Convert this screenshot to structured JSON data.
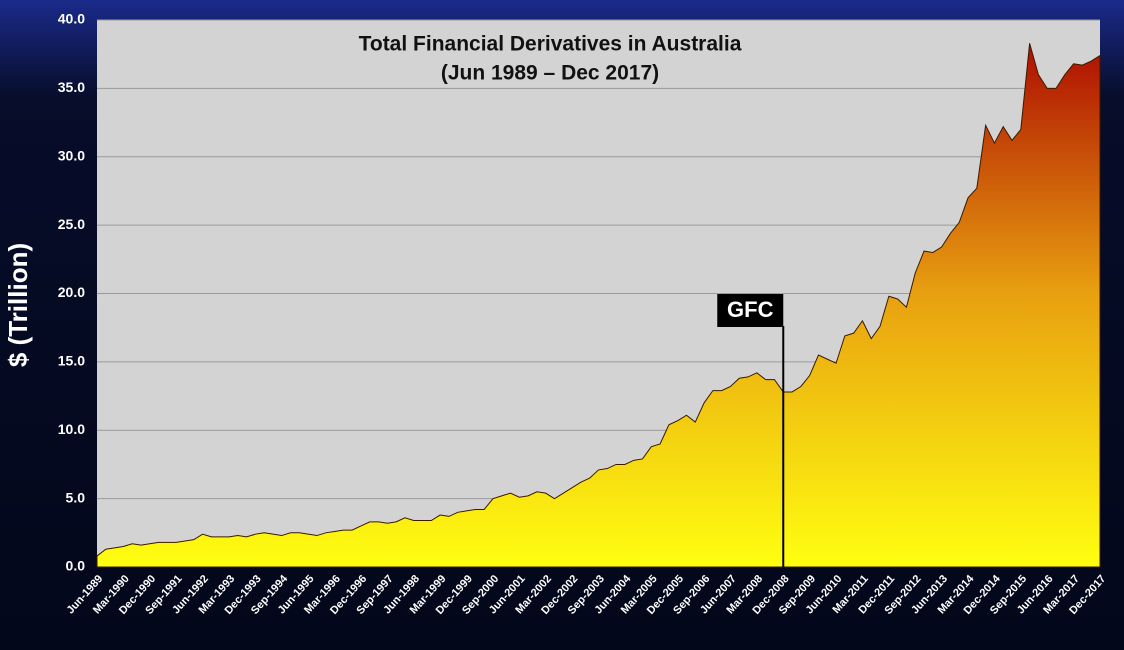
{
  "chart_data": {
    "type": "area",
    "title": "Total Financial Derivatives in Australia",
    "subtitle": "(Jun 1989 – Dec 2017)",
    "y_label": "$ (Trillion)",
    "categories": [
      "Jun-1989",
      null,
      null,
      "Mar-1990",
      null,
      null,
      "Dec-1990",
      null,
      null,
      "Sep-1991",
      null,
      null,
      "Jun-1992",
      null,
      null,
      "Mar-1993",
      null,
      null,
      "Dec-1993",
      null,
      null,
      "Sep-1994",
      null,
      null,
      "Jun-1995",
      null,
      null,
      "Mar-1996",
      null,
      null,
      "Dec-1996",
      null,
      null,
      "Sep-1997",
      null,
      null,
      "Jun-1998",
      null,
      null,
      "Mar-1999",
      null,
      null,
      "Dec-1999",
      null,
      null,
      "Sep-2000",
      null,
      null,
      "Jun-2001",
      null,
      null,
      "Mar-2002",
      null,
      null,
      "Dec-2002",
      null,
      null,
      "Sep-2003",
      null,
      null,
      "Jun-2004",
      null,
      null,
      "Mar-2005",
      null,
      null,
      "Dec-2005",
      null,
      null,
      "Sep-2006",
      null,
      null,
      "Jun-2007",
      null,
      null,
      "Mar-2008",
      null,
      null,
      "Dec-2008",
      null,
      null,
      "Sep-2009",
      null,
      null,
      "Jun-2010",
      null,
      null,
      "Mar-2011",
      null,
      null,
      "Dec-2011",
      null,
      null,
      "Sep-2012",
      null,
      null,
      "Jun-2013",
      null,
      null,
      "Mar-2014",
      null,
      null,
      "Dec-2014",
      null,
      null,
      "Sep-2015",
      null,
      null,
      "Jun-2016",
      null,
      null,
      "Mar-2017",
      null,
      null,
      "Dec-2017"
    ],
    "values": [
      0.8,
      1.3,
      1.4,
      1.5,
      1.7,
      1.6,
      1.7,
      1.8,
      1.8,
      1.8,
      1.9,
      2.0,
      2.4,
      2.2,
      2.2,
      2.2,
      2.3,
      2.2,
      2.4,
      2.5,
      2.4,
      2.3,
      2.5,
      2.5,
      2.4,
      2.3,
      2.5,
      2.6,
      2.7,
      2.7,
      3.0,
      3.3,
      3.3,
      3.2,
      3.3,
      3.6,
      3.4,
      3.4,
      3.4,
      3.8,
      3.7,
      4.0,
      4.1,
      4.2,
      4.2,
      5.0,
      5.2,
      5.4,
      5.1,
      5.2,
      5.5,
      5.4,
      5.0,
      5.4,
      5.8,
      6.2,
      6.5,
      7.1,
      7.2,
      7.5,
      7.5,
      7.8,
      7.9,
      8.8,
      9.0,
      10.4,
      10.7,
      11.1,
      10.6,
      12.0,
      12.9,
      12.9,
      13.2,
      13.8,
      13.9,
      14.2,
      13.7,
      13.7,
      12.8,
      12.8,
      13.2,
      14.0,
      15.5,
      15.2,
      14.9,
      16.9,
      17.1,
      18.0,
      16.7,
      17.6,
      19.8,
      19.6,
      19.0,
      21.5,
      23.1,
      23.0,
      23.4,
      24.4,
      25.2,
      27.0,
      27.7,
      32.3,
      31.0,
      32.2,
      31.2,
      32.0,
      38.3,
      36.0,
      35.0,
      35.0,
      36.0,
      36.8,
      36.7,
      37.0,
      37.4
    ],
    "fill_colors": [
      "#ffff10",
      "#e8a010",
      "#a80000"
    ],
    "ylim": [
      0,
      40
    ],
    "yticks": [
      {
        "value": 0,
        "label": "0.0"
      },
      {
        "value": 5,
        "label": "5.0"
      },
      {
        "value": 10,
        "label": "10.0"
      },
      {
        "value": 15,
        "label": "15.0"
      },
      {
        "value": 20,
        "label": "20.0"
      },
      {
        "value": 25,
        "label": "25.0"
      },
      {
        "value": 30,
        "label": "30.0"
      },
      {
        "value": 35,
        "label": "35.0"
      },
      {
        "value": 40,
        "label": "40.0"
      }
    ],
    "grid": true,
    "annotation": {
      "text": "GFC",
      "x": "Dec-2008"
    }
  }
}
